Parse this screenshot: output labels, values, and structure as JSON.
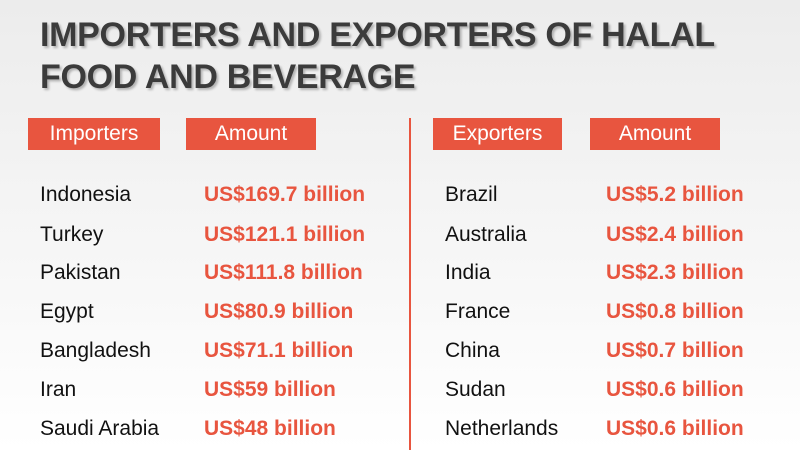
{
  "header": {
    "title": "IMPORTERS AND EXPORTERS OF HALAL FOOD AND BEVERAGE"
  },
  "importers": {
    "columns": [
      "Importers",
      "Amount"
    ],
    "rows": [
      [
        "Indonesia",
        "US$169.7 billion"
      ],
      [
        "Turkey",
        "US$121.1 billion"
      ],
      [
        "Pakistan",
        "US$111.8 billion"
      ],
      [
        "Egypt",
        "US$80.9 billion"
      ],
      [
        "Bangladesh",
        "US$71.1 billion"
      ],
      [
        "Iran",
        "US$59 billion"
      ],
      [
        "Saudi Arabia",
        "US$48 billion"
      ]
    ]
  },
  "exporters": {
    "columns": [
      "Exporters",
      "Amount"
    ],
    "rows": [
      [
        "Brazil",
        "US$5.2 billion"
      ],
      [
        "Australia",
        "US$2.4 billion"
      ],
      [
        "India",
        "US$2.3 billion"
      ],
      [
        "France",
        "US$0.8 billion"
      ],
      [
        "China",
        "US$0.7 billion"
      ],
      [
        "Sudan",
        "US$0.6 billion"
      ],
      [
        "Netherlands",
        "US$0.6 billion"
      ]
    ]
  }
}
